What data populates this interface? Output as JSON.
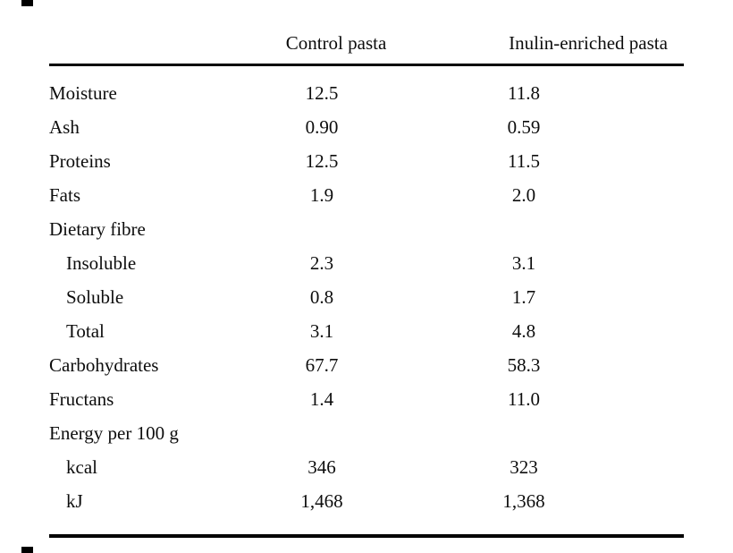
{
  "chart_data": {
    "type": "table",
    "columns": {
      "label": "",
      "control": "Control pasta",
      "inulin": "Inulin-enriched pasta"
    },
    "rows": [
      {
        "label": "Moisture",
        "control": "12.5",
        "inulin": "11.8"
      },
      {
        "label": "Ash",
        "control": "0.90",
        "inulin": "0.59"
      },
      {
        "label": "Proteins",
        "control": "12.5",
        "inulin": "11.5"
      },
      {
        "label": "Fats",
        "control": "1.9",
        "inulin": "2.0"
      },
      {
        "label": "Dietary fibre",
        "control": "",
        "inulin": ""
      },
      {
        "label": "Insoluble",
        "control": "2.3",
        "inulin": "3.1"
      },
      {
        "label": "Soluble",
        "control": "0.8",
        "inulin": "1.7"
      },
      {
        "label": "Total",
        "control": "3.1",
        "inulin": "4.8"
      },
      {
        "label": "Carbohydrates",
        "control": "67.7",
        "inulin": "58.3"
      },
      {
        "label": "Fructans",
        "control": "1.4",
        "inulin": "11.0"
      },
      {
        "label": "Energy per 100 g",
        "control": "",
        "inulin": ""
      },
      {
        "label": "kcal",
        "control": "346",
        "inulin": "323"
      },
      {
        "label": "kJ",
        "control": "1,468",
        "inulin": "1,368"
      }
    ],
    "layout": {
      "grid": "off",
      "rules": [
        "below-header",
        "table-bottom"
      ]
    }
  },
  "colors": {
    "text": "#0d0d0d",
    "rule": "#000000",
    "background": "#ffffff"
  }
}
